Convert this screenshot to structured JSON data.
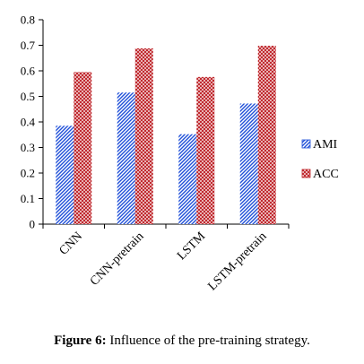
{
  "chart_data": {
    "type": "bar",
    "categories": [
      "CNN",
      "CNN-pretrain",
      "LSTM",
      "LSTM-pretrain"
    ],
    "series": [
      {
        "name": "AMI",
        "values": [
          0.385,
          0.515,
          0.352,
          0.472
        ],
        "color": "#1f4fd8",
        "pattern": "diagonal-stripes"
      },
      {
        "name": "ACC",
        "values": [
          0.595,
          0.688,
          0.576,
          0.698
        ],
        "color": "#c0282d",
        "pattern": "diagonal-crosshatch"
      }
    ],
    "yticks": [
      "0",
      "0.1",
      "0.2",
      "0.3",
      "0.4",
      "0.5",
      "0.6",
      "0.7",
      "0.8"
    ],
    "ylim": [
      0,
      0.8
    ],
    "grid": false,
    "legend_position": "right",
    "title": "",
    "xlabel": "",
    "ylabel": ""
  },
  "caption": {
    "label": "Figure 6:",
    "text": " Influence of the pre-training strategy."
  }
}
